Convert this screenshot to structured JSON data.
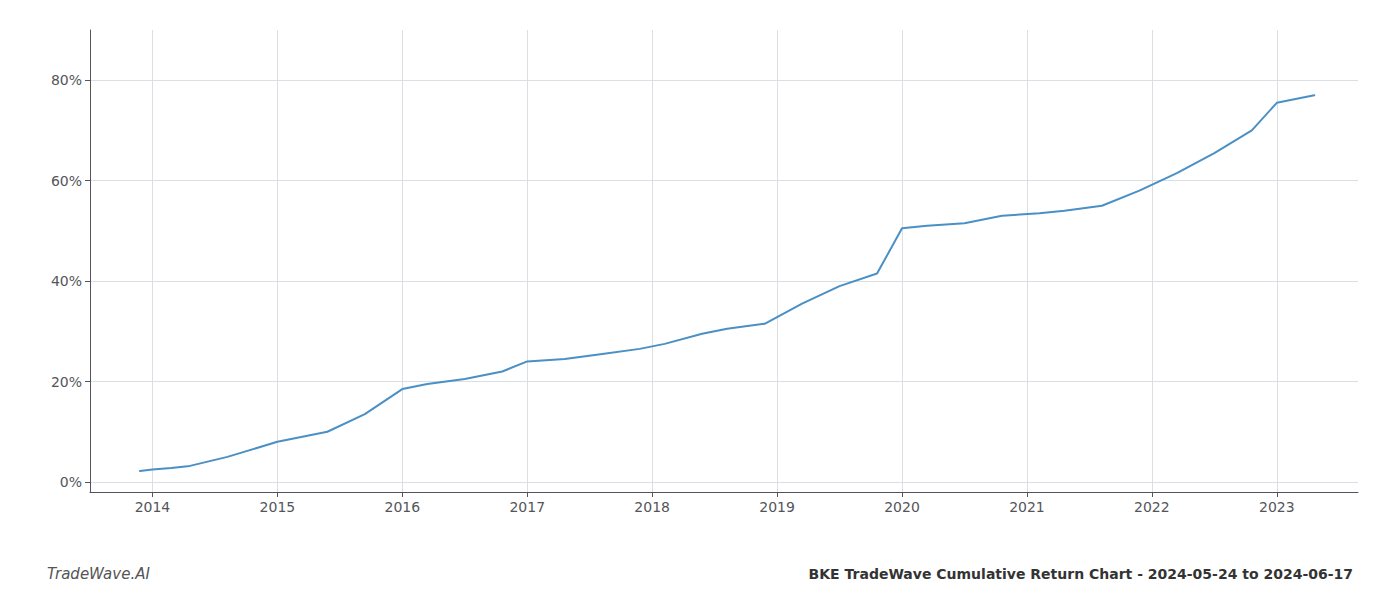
{
  "chart_data": {
    "type": "line",
    "title": "BKE TradeWave Cumulative Return Chart - 2024-05-24 to 2024-06-17",
    "annotations": [
      "TradeWave.AI"
    ],
    "x": [
      2013.9,
      2014.0,
      2014.15,
      2014.3,
      2014.6,
      2015.0,
      2015.4,
      2015.7,
      2016.0,
      2016.2,
      2016.5,
      2016.8,
      2017.0,
      2017.3,
      2017.6,
      2017.9,
      2018.1,
      2018.4,
      2018.6,
      2018.9,
      2019.2,
      2019.5,
      2019.8,
      2020.0,
      2020.2,
      2020.5,
      2020.8,
      2021.1,
      2021.3,
      2021.6,
      2021.9,
      2022.2,
      2022.5,
      2022.8,
      2023.0,
      2023.3
    ],
    "values": [
      0.022,
      0.025,
      0.028,
      0.032,
      0.05,
      0.08,
      0.1,
      0.135,
      0.185,
      0.195,
      0.205,
      0.22,
      0.24,
      0.245,
      0.255,
      0.265,
      0.275,
      0.295,
      0.305,
      0.315,
      0.355,
      0.39,
      0.415,
      0.505,
      0.51,
      0.515,
      0.53,
      0.535,
      0.54,
      0.55,
      0.58,
      0.615,
      0.655,
      0.7,
      0.755,
      0.77
    ],
    "color": "#4a90c4",
    "xlim": [
      2013.5,
      2023.65
    ],
    "xticks": [
      2014,
      2015,
      2016,
      2017,
      2018,
      2019,
      2020,
      2021,
      2022,
      2023
    ],
    "ylim": [
      -0.02,
      0.9
    ],
    "yticks": [
      {
        "value": 0.0,
        "label": "0%"
      },
      {
        "value": 0.2,
        "label": "20%"
      },
      {
        "value": 0.4,
        "label": "40%"
      },
      {
        "value": 0.6,
        "label": "60%"
      },
      {
        "value": 0.8,
        "label": "80%"
      }
    ],
    "grid": true
  }
}
